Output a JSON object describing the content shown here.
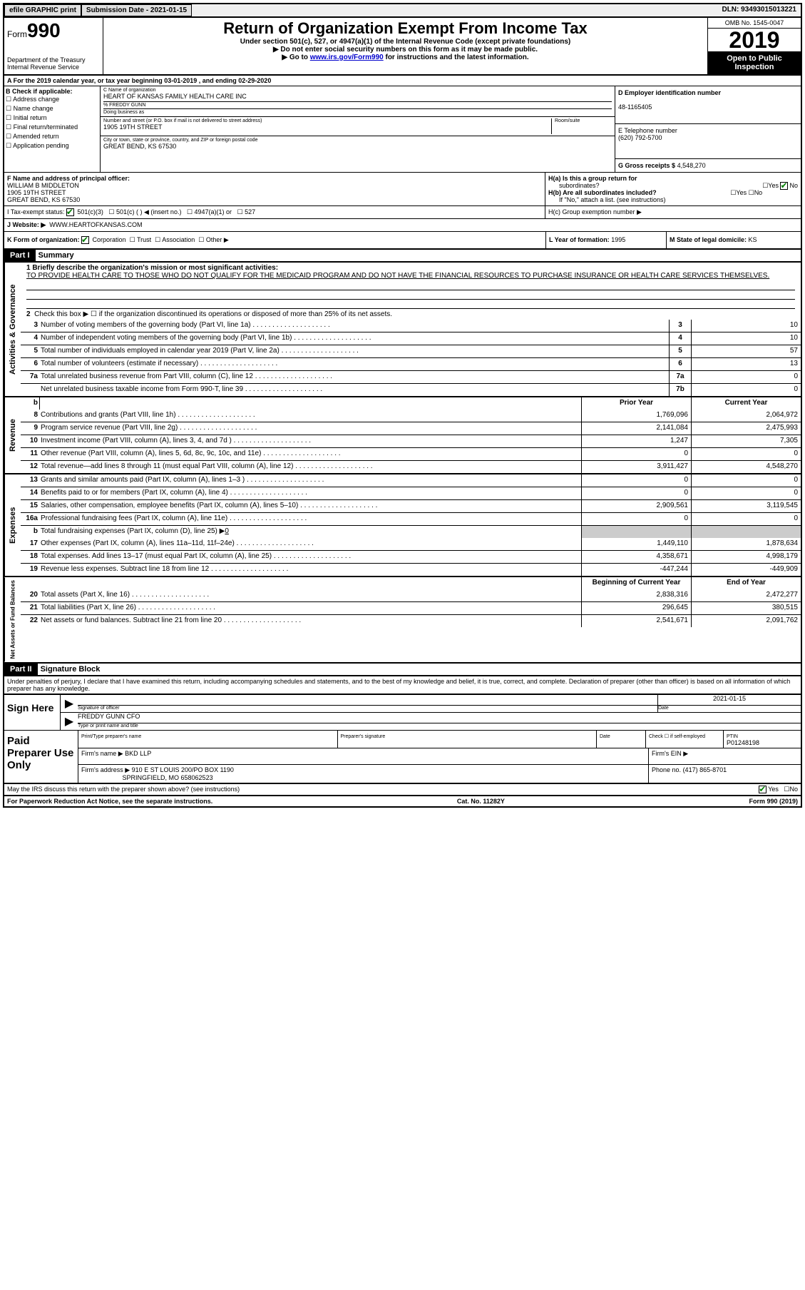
{
  "topbar": {
    "efile": "efile GRAPHIC print",
    "submission": "Submission Date - 2021-01-15",
    "dln": "DLN: 93493015013221"
  },
  "header": {
    "form_prefix": "Form",
    "form_number": "990",
    "dept": "Department of the Treasury",
    "irs": "Internal Revenue Service",
    "title": "Return of Organization Exempt From Income Tax",
    "sub1": "Under section 501(c), 527, or 4947(a)(1) of the Internal Revenue Code (except private foundations)",
    "sub2": "▶ Do not enter social security numbers on this form as it may be made public.",
    "sub3_pre": "▶ Go to ",
    "sub3_link": "www.irs.gov/Form990",
    "sub3_post": " for instructions and the latest information.",
    "omb": "OMB No. 1545-0047",
    "year": "2019",
    "open": "Open to Public Inspection"
  },
  "period": "A   For the 2019 calendar year, or tax year beginning 03-01-2019    , and ending 02-29-2020",
  "colB": {
    "title": "B Check if applicable:",
    "items": [
      "Address change",
      "Name change",
      "Initial return",
      "Final return/terminated",
      "Amended return",
      "Application pending"
    ]
  },
  "colC": {
    "name_label": "C Name of organization",
    "name": "HEART OF KANSAS FAMILY HEALTH CARE INC",
    "pct_label": "% FREDDY GUNN",
    "dba_label": "Doing business as",
    "addr_label": "Number and street (or P.O. box if mail is not delivered to street address)",
    "addr": "1905 19TH STREET",
    "room_label": "Room/suite",
    "city_label": "City or town, state or province, country, and ZIP or foreign postal code",
    "city": "GREAT BEND, KS  67530"
  },
  "colD": {
    "ein_label": "D Employer identification number",
    "ein": "48-1165405",
    "phone_label": "E Telephone number",
    "phone": "(620) 792-5700",
    "gross_label": "G Gross receipts $",
    "gross": "4,548,270"
  },
  "f": {
    "label": "F  Name and address of principal officer:",
    "name": "WILLIAM B MIDDLETON",
    "addr1": "1905 19TH STREET",
    "addr2": "GREAT BEND, KS  67530"
  },
  "h": {
    "ha": "H(a)  Is this a group return for",
    "ha2": "subordinates?",
    "hb": "H(b)  Are all subordinates included?",
    "hb_note": "If \"No,\" attach a list. (see instructions)",
    "hc": "H(c)  Group exemption number ▶"
  },
  "tax_status": {
    "label": "I    Tax-exempt status:",
    "opts": [
      "501(c)(3)",
      "501(c) (  ) ◀ (insert no.)",
      "4947(a)(1) or",
      "527"
    ]
  },
  "website": {
    "label": "J   Website: ▶",
    "value": "WWW.HEARTOFKANSAS.COM"
  },
  "k": {
    "label": "K Form of organization:",
    "opts": [
      "Corporation",
      "Trust",
      "Association",
      "Other ▶"
    ],
    "l_label": "L Year of formation:",
    "l_val": "1995",
    "m_label": "M State of legal domicile:",
    "m_val": "KS"
  },
  "part1": {
    "header": "Part I",
    "title": "Summary",
    "line1_label": "1  Briefly describe the organization's mission or most significant activities:",
    "mission": "TO PROVIDE HEALTH CARE TO THOSE WHO DO NOT QUALIFY FOR THE MEDICAID PROGRAM AND DO NOT HAVE THE FINANCIAL RESOURCES TO PURCHASE INSURANCE OR HEALTH CARE SERVICES THEMSELVES.",
    "line2": "Check this box ▶ ☐  if the organization discontinued its operations or disposed of more than 25% of its net assets."
  },
  "gov_lines": [
    {
      "n": "3",
      "d": "Number of voting members of the governing body (Part VI, line 1a)",
      "bn": "3",
      "v": "10"
    },
    {
      "n": "4",
      "d": "Number of independent voting members of the governing body (Part VI, line 1b)",
      "bn": "4",
      "v": "10"
    },
    {
      "n": "5",
      "d": "Total number of individuals employed in calendar year 2019 (Part V, line 2a)",
      "bn": "5",
      "v": "57"
    },
    {
      "n": "6",
      "d": "Total number of volunteers (estimate if necessary)",
      "bn": "6",
      "v": "13"
    },
    {
      "n": "7a",
      "d": "Total unrelated business revenue from Part VIII, column (C), line 12",
      "bn": "7a",
      "v": "0"
    },
    {
      "n": "",
      "d": "Net unrelated business taxable income from Form 990-T, line 39",
      "bn": "7b",
      "v": "0"
    }
  ],
  "head_prior": "Prior Year",
  "head_current": "Current Year",
  "rev_lines": [
    {
      "n": "8",
      "d": "Contributions and grants (Part VIII, line 1h)",
      "p": "1,769,096",
      "c": "2,064,972"
    },
    {
      "n": "9",
      "d": "Program service revenue (Part VIII, line 2g)",
      "p": "2,141,084",
      "c": "2,475,993"
    },
    {
      "n": "10",
      "d": "Investment income (Part VIII, column (A), lines 3, 4, and 7d )",
      "p": "1,247",
      "c": "7,305"
    },
    {
      "n": "11",
      "d": "Other revenue (Part VIII, column (A), lines 5, 6d, 8c, 9c, 10c, and 11e)",
      "p": "0",
      "c": "0"
    },
    {
      "n": "12",
      "d": "Total revenue—add lines 8 through 11 (must equal Part VIII, column (A), line 12)",
      "p": "3,911,427",
      "c": "4,548,270"
    }
  ],
  "exp_lines": [
    {
      "n": "13",
      "d": "Grants and similar amounts paid (Part IX, column (A), lines 1–3 )",
      "p": "0",
      "c": "0"
    },
    {
      "n": "14",
      "d": "Benefits paid to or for members (Part IX, column (A), line 4)",
      "p": "0",
      "c": "0"
    },
    {
      "n": "15",
      "d": "Salaries, other compensation, employee benefits (Part IX, column (A), lines 5–10)",
      "p": "2,909,561",
      "c": "3,119,545"
    },
    {
      "n": "16a",
      "d": "Professional fundraising fees (Part IX, column (A), line 11e)",
      "p": "0",
      "c": "0"
    }
  ],
  "exp_b": {
    "n": "b",
    "d": "Total fundraising expenses (Part IX, column (D), line 25) ▶",
    "v": "0"
  },
  "exp_lines2": [
    {
      "n": "17",
      "d": "Other expenses (Part IX, column (A), lines 11a–11d, 11f–24e)",
      "p": "1,449,110",
      "c": "1,878,634"
    },
    {
      "n": "18",
      "d": "Total expenses. Add lines 13–17 (must equal Part IX, column (A), line 25)",
      "p": "4,358,671",
      "c": "4,998,179"
    },
    {
      "n": "19",
      "d": "Revenue less expenses. Subtract line 18 from line 12",
      "p": "-447,244",
      "c": "-449,909"
    }
  ],
  "net_head_p": "Beginning of Current Year",
  "net_head_c": "End of Year",
  "net_lines": [
    {
      "n": "20",
      "d": "Total assets (Part X, line 16)",
      "p": "2,838,316",
      "c": "2,472,277"
    },
    {
      "n": "21",
      "d": "Total liabilities (Part X, line 26)",
      "p": "296,645",
      "c": "380,515"
    },
    {
      "n": "22",
      "d": "Net assets or fund balances. Subtract line 21 from line 20",
      "p": "2,541,671",
      "c": "2,091,762"
    }
  ],
  "part2": {
    "header": "Part II",
    "title": "Signature Block"
  },
  "declare": "Under penalties of perjury, I declare that I have examined this return, including accompanying schedules and statements, and to the best of my knowledge and belief, it is true, correct, and complete. Declaration of preparer (other than officer) is based on all information of which preparer has any knowledge.",
  "sign": {
    "label": "Sign Here",
    "sig_officer": "Signature of officer",
    "date_label": "Date",
    "date": "2021-01-15",
    "name": "FREDDY GUNN  CFO",
    "name_label": "Type or print name and title"
  },
  "prep": {
    "label": "Paid Preparer Use Only",
    "h1": "Print/Type preparer's name",
    "h2": "Preparer's signature",
    "h3": "Date",
    "h4": "Check ☐ if self-employed",
    "h5": "PTIN",
    "ptin": "P01248198",
    "firm_label": "Firm's name    ▶",
    "firm": "BKD LLP",
    "ein_label": "Firm's EIN ▶",
    "addr_label": "Firm's address ▶",
    "addr1": "910 E ST LOUIS 200/PO BOX 1190",
    "addr2": "SPRINGFIELD, MO  658062523",
    "phone_label": "Phone no.",
    "phone": "(417) 865-8701"
  },
  "discuss": "May the IRS discuss this return with the preparer shown above? (see instructions)",
  "yes": "Yes",
  "no": "No",
  "footer": {
    "paperwork": "For Paperwork Reduction Act Notice, see the separate instructions.",
    "cat": "Cat. No. 11282Y",
    "form": "Form 990 (2019)"
  },
  "gov_label": "Activities & Governance",
  "rev_label": "Revenue",
  "exp_label": "Expenses",
  "net_label": "Net Assets or Fund Balances"
}
